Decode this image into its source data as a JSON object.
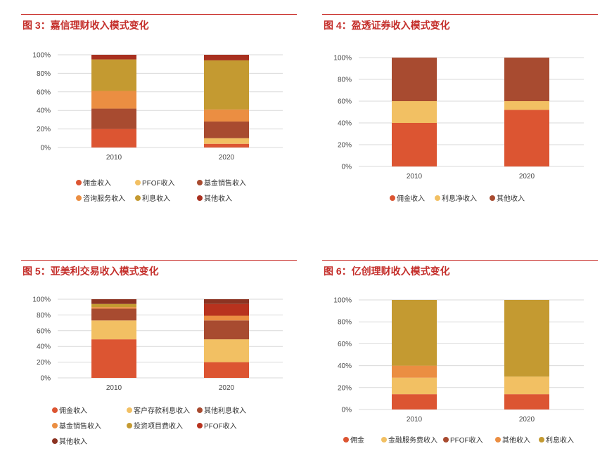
{
  "chart_data": [
    {
      "type": "bar",
      "stacked": true,
      "title": "图 3：嘉信理财收入模式变化",
      "categories": [
        "2010",
        "2020"
      ],
      "ylim": [
        0,
        100
      ],
      "yticks": [
        "0%",
        "20%",
        "40%",
        "60%",
        "80%",
        "100%"
      ],
      "series": [
        {
          "name": "佣金收入",
          "color": "#dc5532",
          "values": [
            20,
            4
          ]
        },
        {
          "name": "PFOF收入",
          "color": "#f2c063",
          "values": [
            0,
            6
          ]
        },
        {
          "name": "基金销售收入",
          "color": "#a84b30",
          "values": [
            22,
            18
          ]
        },
        {
          "name": "咨询服务收入",
          "color": "#eb8e42",
          "values": [
            19,
            13
          ]
        },
        {
          "name": "利息收入",
          "color": "#c49a31",
          "values": [
            34,
            53
          ]
        },
        {
          "name": "其他收入",
          "color": "#a8301f",
          "values": [
            5,
            6
          ]
        }
      ]
    },
    {
      "type": "bar",
      "stacked": true,
      "title": "图 4：盈透证券收入模式变化",
      "categories": [
        "2010",
        "2020"
      ],
      "ylim": [
        0,
        100
      ],
      "yticks": [
        "0%",
        "20%",
        "40%",
        "60%",
        "80%",
        "100%"
      ],
      "series": [
        {
          "name": "佣金收入",
          "color": "#dc5532",
          "values": [
            40,
            52
          ]
        },
        {
          "name": "利息净收入",
          "color": "#f2c063",
          "values": [
            20,
            8
          ]
        },
        {
          "name": "其他收入",
          "color": "#a84b30",
          "values": [
            40,
            40
          ]
        }
      ]
    },
    {
      "type": "bar",
      "stacked": true,
      "title": "图 5：亚美利交易收入模式变化",
      "categories": [
        "2010",
        "2020"
      ],
      "ylim": [
        0,
        100
      ],
      "yticks": [
        "0%",
        "20%",
        "40%",
        "60%",
        "80%",
        "100%"
      ],
      "series": [
        {
          "name": "佣金收入",
          "color": "#dc5532",
          "values": [
            49,
            20
          ]
        },
        {
          "name": "客户存款利息收入",
          "color": "#f2c063",
          "values": [
            24,
            29
          ]
        },
        {
          "name": "其他利息收入",
          "color": "#a84b30",
          "values": [
            15,
            24
          ]
        },
        {
          "name": "基金销售收入",
          "color": "#eb8e42",
          "values": [
            2,
            6
          ]
        },
        {
          "name": "投资项目费收入",
          "color": "#c49a31",
          "values": [
            4,
            0
          ]
        },
        {
          "name": "PFOF收入",
          "color": "#b8321e",
          "values": [
            0,
            15
          ]
        },
        {
          "name": "其他收入",
          "color": "#8c3322",
          "values": [
            6,
            6
          ]
        }
      ]
    },
    {
      "type": "bar",
      "stacked": true,
      "title": "图 6：亿创理财收入模式变化",
      "categories": [
        "2010",
        "2020"
      ],
      "ylim": [
        0,
        100
      ],
      "yticks": [
        "0%",
        "20%",
        "40%",
        "60%",
        "80%",
        "100%"
      ],
      "series": [
        {
          "name": "佣金",
          "color": "#dc5532",
          "values": [
            14,
            14
          ]
        },
        {
          "name": "金融服务费收入",
          "color": "#f2c063",
          "values": [
            15,
            16
          ]
        },
        {
          "name": "PFOF收入",
          "color": "#a84b30",
          "values": [
            0,
            0
          ]
        },
        {
          "name": "其他收入",
          "color": "#eb8e42",
          "values": [
            11,
            0
          ]
        },
        {
          "name": "利息收入",
          "color": "#c49a31",
          "values": [
            60,
            70
          ]
        }
      ]
    }
  ]
}
